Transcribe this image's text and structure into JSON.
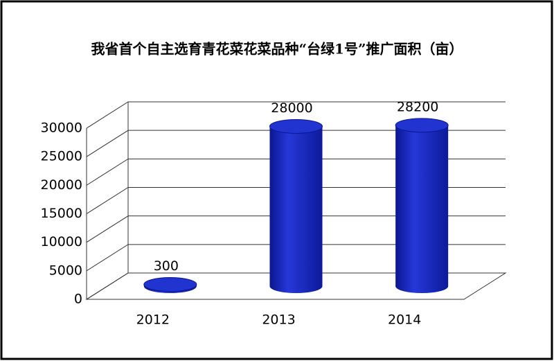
{
  "chart_data": {
    "type": "bar3d",
    "title": "我省首个自主选育青花菜花菜品种“台绿1号”推广面积（亩）",
    "categories": [
      "2012",
      "2013",
      "2014"
    ],
    "values": [
      300,
      28000,
      28200
    ],
    "color": "#1f2fc8",
    "ylim": [
      0,
      30000
    ],
    "yticks": [
      0,
      5000,
      10000,
      15000,
      20000,
      25000,
      30000
    ],
    "grid": true
  }
}
